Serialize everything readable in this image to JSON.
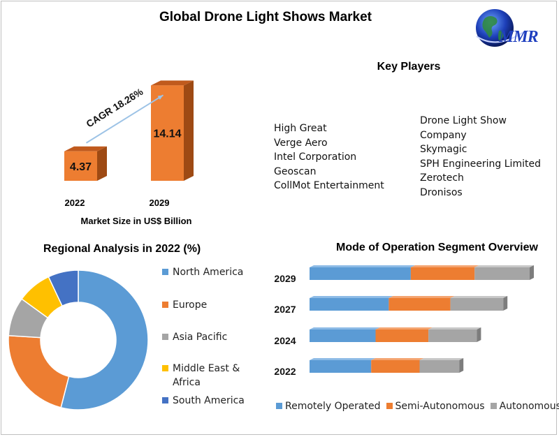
{
  "title": "Global Drone Light Shows Market",
  "logo_text": "MMR",
  "key_players": {
    "title": "Key Players",
    "left": [
      "High Great",
      "Verge Aero",
      "Intel Corporation",
      "Geoscan",
      "CollMot Entertainment"
    ],
    "right": [
      "Drone Light Show",
      "Company",
      "Skymagic",
      "SPH Engineering  Limited",
      "Zerotech",
      "Dronisos"
    ]
  },
  "colors": {
    "bar_front": "#ed7d31",
    "bar_side": "#9e4a14",
    "bar_top": "#c05a1d",
    "arrow": "#9dc3e6",
    "remotely": "#5b9bd5",
    "semi": "#ed7d31",
    "auto": "#a5a5a5",
    "mea": "#ffc000",
    "south_america": "#4472c4"
  },
  "chart_data": [
    {
      "type": "bar",
      "title": "",
      "categories": [
        "2022",
        "2029"
      ],
      "values": [
        4.37,
        14.14
      ],
      "value_labels": [
        "4.37",
        "14.14"
      ],
      "annotation": "CAGR 18.26%",
      "xlabel": "Market Size in US$ Billion",
      "ylabel": "",
      "ylim": [
        0,
        15
      ]
    },
    {
      "type": "pie",
      "title": "Regional Analysis in 2022 (%)",
      "donut": true,
      "legend_position": "right",
      "labels": [
        "North America",
        "Europe",
        "Asia Pacific",
        "Middle East & Africa",
        "South America"
      ],
      "legend_lines": [
        [
          "North America"
        ],
        [
          "Europe"
        ],
        [
          "Asia Pacific"
        ],
        [
          "Middle East &",
          "Africa"
        ],
        [
          "South America"
        ]
      ],
      "values": [
        54,
        22,
        9,
        8,
        7
      ]
    },
    {
      "type": "bar",
      "orientation": "horizontal",
      "stacked": true,
      "title": "Mode of Operation Segment Overview",
      "categories": [
        "2029",
        "2027",
        "2024",
        "2022"
      ],
      "legend_position": "bottom",
      "series": [
        {
          "name": "Remotely Operated",
          "values": [
            46,
            36,
            30,
            28
          ]
        },
        {
          "name": "Semi-Autonomous",
          "values": [
            29,
            28,
            24,
            22
          ]
        },
        {
          "name": "Autonomous",
          "values": [
            25,
            24,
            22,
            18
          ]
        }
      ],
      "xlim": [
        0,
        100
      ]
    }
  ]
}
